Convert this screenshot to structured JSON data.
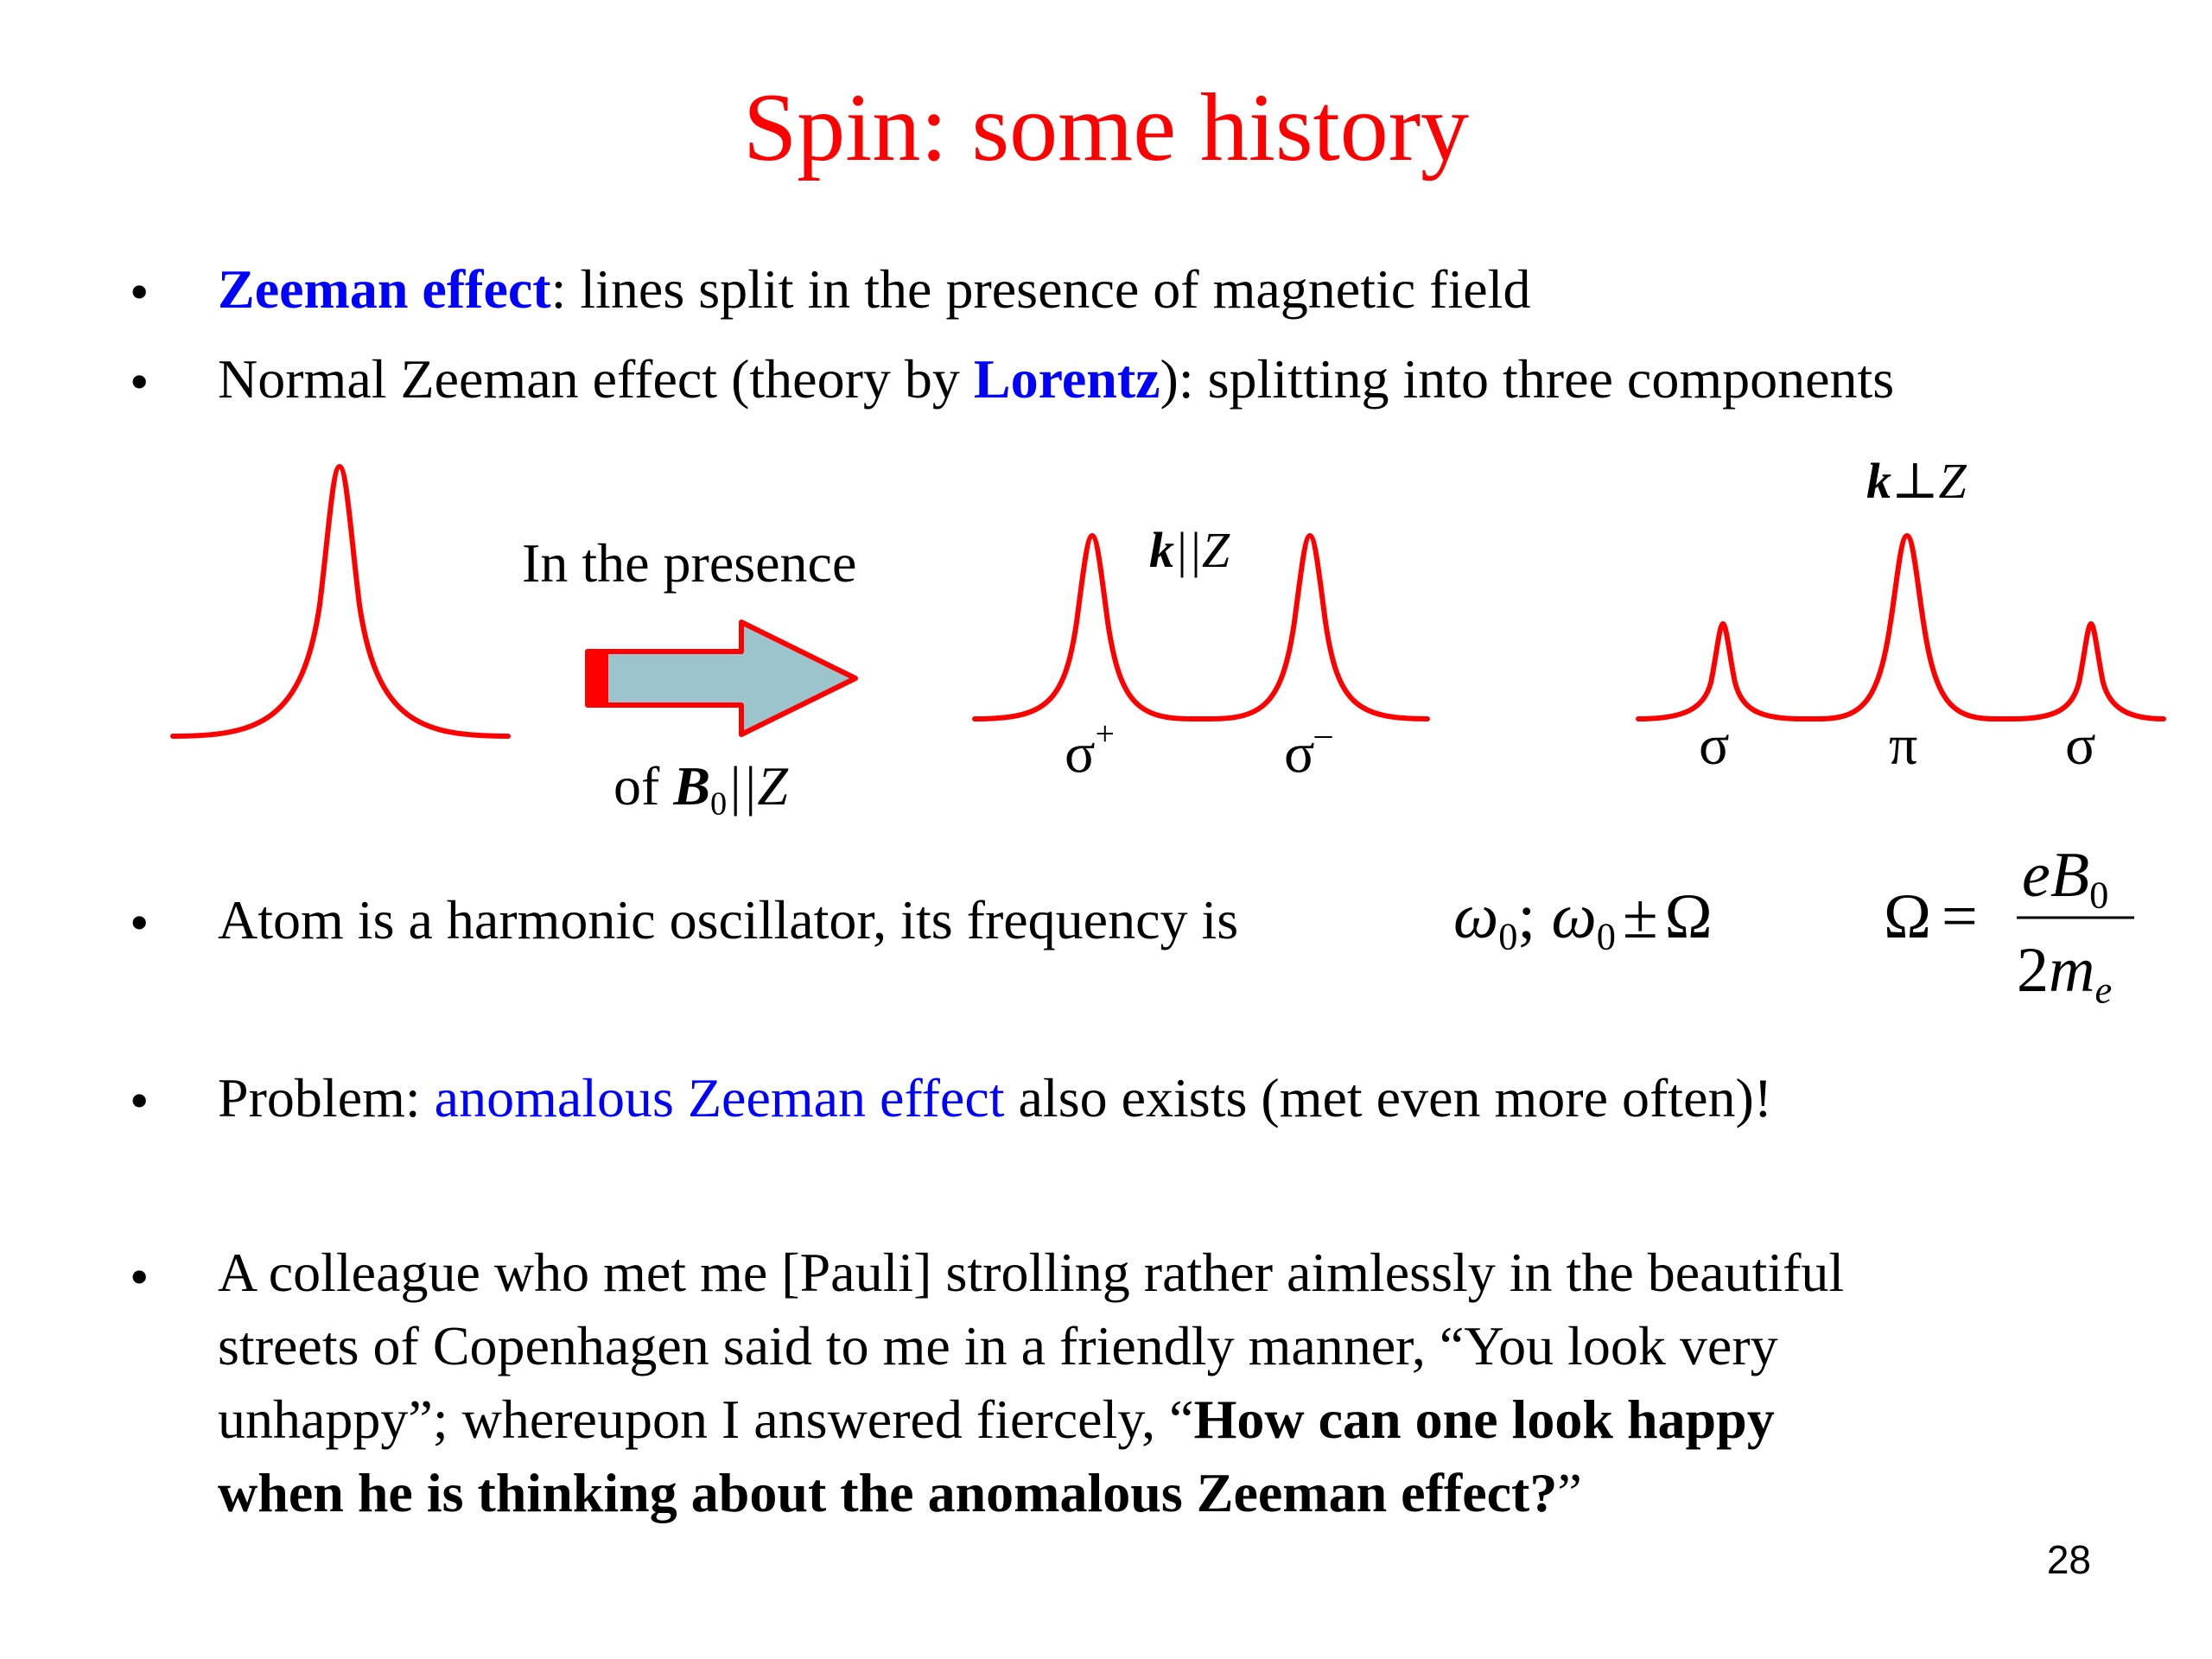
{
  "title": "Spin: some history",
  "bullets": {
    "b1": {
      "marker": "•",
      "highlight": "Zeeman effect",
      "rest": ": lines split in the presence of magnetic field"
    },
    "b2": {
      "marker": "•",
      "pre": "Normal Zeeman effect (theory by ",
      "highlight": "Lorentz",
      "post": "): splitting into three components"
    },
    "b3": {
      "marker": "•",
      "text": "Atom is a harmonic oscillator, its frequency is"
    },
    "b4": {
      "marker": "•",
      "pre": "Problem: ",
      "highlight": "anomalous Zeeman effect",
      "post": " also exists (met even more often)!"
    },
    "b5": {
      "marker": "•",
      "line1": "A colleague who met me [Pauli] strolling rather aimlessly in the beautiful",
      "line2": "streets of Copenhagen said to me in a friendly manner, “You look very",
      "line3_pre": "unhappy”; whereupon I answered fiercely, “",
      "line3_bold": "How can one look happy",
      "line4_bold": "when he is thinking about the anomalous Zeeman effect?",
      "line4_post": "”"
    }
  },
  "diagram": {
    "arrow_label_top": "In the presence",
    "arrow_label_bottom_pre": "of ",
    "arrow_label_bottom_B": "B",
    "arrow_label_bottom_sub": "0",
    "arrow_label_bottom_post": "||Z",
    "k_parallel_k": "k",
    "k_parallel_rest": "||Z",
    "k_perp_k": "k",
    "k_perp_rest": "⊥Z",
    "sigma_plus": "σ",
    "sigma_plus_sup": "+",
    "sigma_minus": "σ",
    "sigma_minus_sup": "–",
    "perp_left": "σ",
    "perp_center": "π",
    "perp_right": "σ",
    "curve_color": "#ff0000",
    "arrow_fill": "#9cc4cc",
    "arrow_stroke": "#ff0000"
  },
  "formula": {
    "omega": "ω",
    "sub0": "0",
    "sep": "; ",
    "pm": "±",
    "Omega": "Ω",
    "equals": "=",
    "num_e": "e",
    "num_B": "B",
    "num_sub": "0",
    "den_2": "2",
    "den_m": "m",
    "den_sub": "e"
  },
  "page_number": "28",
  "colors": {
    "title": "#ff0000",
    "highlight": "#0000ff"
  }
}
